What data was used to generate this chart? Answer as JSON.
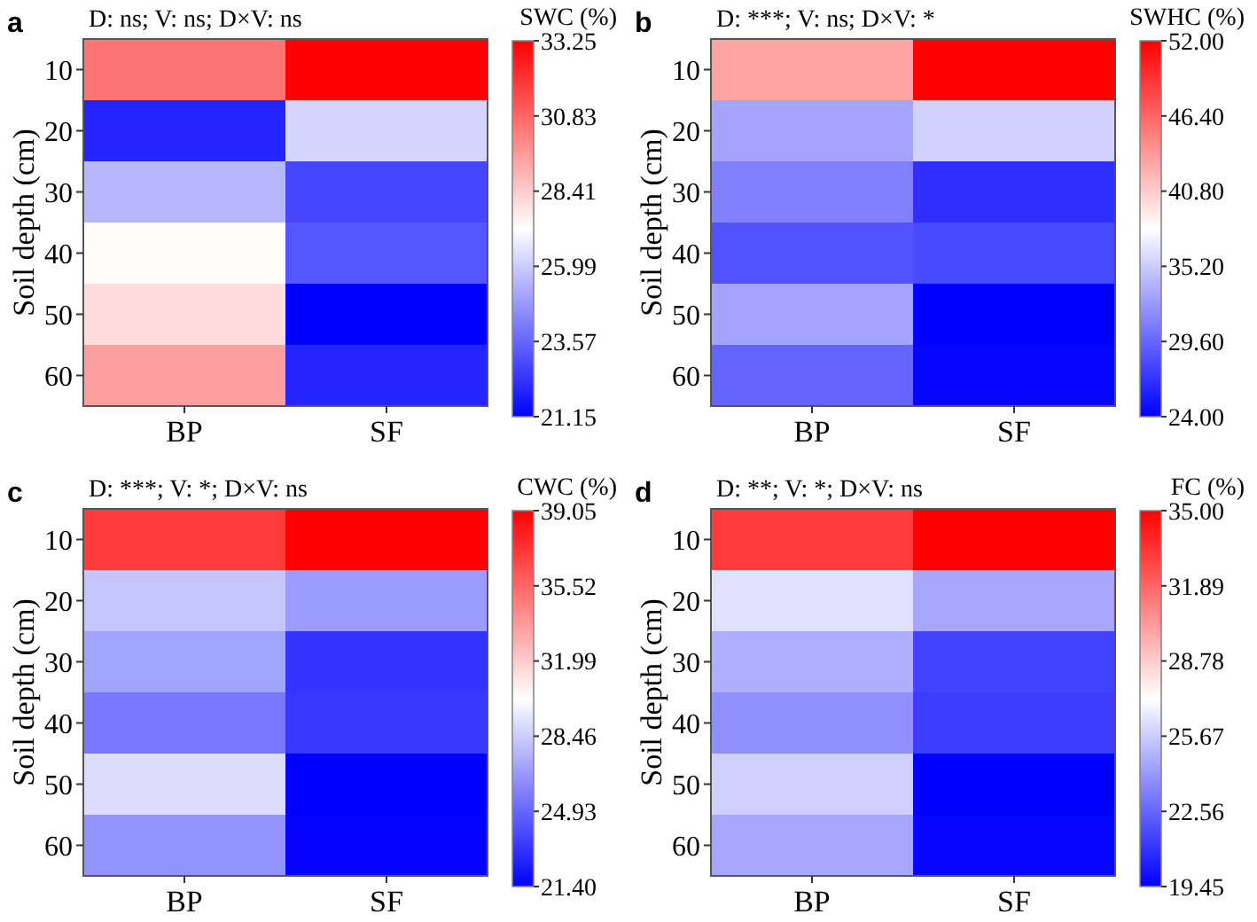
{
  "chart_data": [
    {
      "type": "heatmap",
      "title": "a",
      "subtitle": "D: ns; V: ns; D×V: ns",
      "ylabel": "Soil depth (cm)",
      "clabel": "SWC (%)",
      "categories": [
        "BP",
        "SF"
      ],
      "y_categories": [
        "10",
        "20",
        "30",
        "40",
        "50",
        "60"
      ],
      "cells": [
        [
          30.5,
          33.25
        ],
        [
          22,
          26.2
        ],
        [
          25.5,
          22.8
        ],
        [
          27.3,
          23.2
        ],
        [
          28,
          21.15
        ],
        [
          29.5,
          22
        ]
      ],
      "clim": [
        21.15,
        33.25
      ],
      "cticks": [
        21.15,
        23.57,
        25.99,
        28.41,
        30.83,
        33.25
      ]
    },
    {
      "type": "heatmap",
      "title": "b",
      "subtitle": "D: ***; V: ns; D×V: *",
      "ylabel": "Soil depth (cm)",
      "clabel": "SWHC (%)",
      "categories": [
        "BP",
        "SF"
      ],
      "y_categories": [
        "10",
        "20",
        "30",
        "40",
        "50",
        "60"
      ],
      "cells": [
        [
          43,
          52
        ],
        [
          33,
          35.5
        ],
        [
          31,
          26.5
        ],
        [
          28.5,
          28
        ],
        [
          33,
          24
        ],
        [
          29.5,
          24.3
        ]
      ],
      "clim": [
        24,
        52
      ],
      "cticks": [
        {
          "value": 24,
          "label": "24.00"
        },
        {
          "value": 29.6,
          "label": "29.60"
        },
        {
          "value": 35.2,
          "label": "35.20"
        },
        {
          "value": 40.8,
          "label": "40.80"
        },
        {
          "value": 46.4,
          "label": "46.40"
        },
        {
          "value": 52,
          "label": "52.00"
        }
      ]
    },
    {
      "type": "heatmap",
      "title": "c",
      "subtitle": "D: ***; V: *; D×V: ns",
      "ylabel": "Soil depth (cm)",
      "clabel": "CWC (%)",
      "categories": [
        "BP",
        "SF"
      ],
      "y_categories": [
        "10",
        "20",
        "30",
        "40",
        "50",
        "60"
      ],
      "cells": [
        [
          37,
          39.05
        ],
        [
          28.3,
          26.8
        ],
        [
          27,
          23.2
        ],
        [
          25.5,
          23.3
        ],
        [
          29,
          21.4
        ],
        [
          26.5,
          21.5
        ]
      ],
      "clim": [
        21.4,
        39.05
      ],
      "cticks": [
        {
          "value": 21.4,
          "label": "21.40"
        },
        24.93,
        28.46,
        31.99,
        35.52,
        39.05
      ]
    },
    {
      "type": "heatmap",
      "title": "d",
      "subtitle": "D: **; V: *; D×V: ns",
      "ylabel": "Soil depth (cm)",
      "clabel": "FC (%)",
      "categories": [
        "BP",
        "SF"
      ],
      "y_categories": [
        "10",
        "20",
        "30",
        "40",
        "50",
        "60"
      ],
      "cells": [
        [
          33.2,
          35
        ],
        [
          26.3,
          24.5
        ],
        [
          24.8,
          21.5
        ],
        [
          23.8,
          21.3
        ],
        [
          25.8,
          19.45
        ],
        [
          24.5,
          19.6
        ]
      ],
      "clim": [
        19.45,
        35
      ],
      "cticks": [
        19.45,
        22.56,
        25.67,
        28.78,
        31.89,
        {
          "value": 35,
          "label": "35.00"
        }
      ]
    }
  ]
}
